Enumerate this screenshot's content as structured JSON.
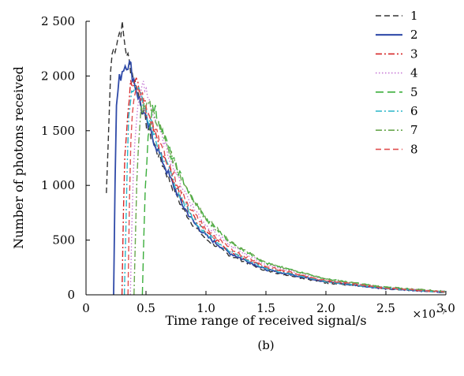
{
  "chart_data": {
    "type": "line",
    "xlabel": "Time range of received signal/s",
    "ylabel": "Number of photons received",
    "x_exponent": "×10⁻⁷",
    "panel_label": "(b)",
    "xlim": [
      0,
      3.0
    ],
    "ylim": [
      0,
      2500
    ],
    "x_ticks": [
      0,
      0.5,
      1.0,
      1.5,
      2.0,
      2.5,
      3.0
    ],
    "x_tick_labels": [
      "0",
      "0.5",
      "1.0",
      "1.5",
      "2.0",
      "2.5",
      "3.0"
    ],
    "y_ticks": [
      0,
      500,
      1000,
      1500,
      2000,
      2500
    ],
    "y_tick_labels": [
      "0",
      "500",
      "1 000",
      "1 500",
      "2 000",
      "2 500"
    ],
    "grid": false,
    "legend_position": "top-right",
    "series": [
      {
        "name": "1",
        "color": "#333333",
        "dash": "dash",
        "x": [
          0.17,
          0.21,
          0.25,
          0.28,
          0.3,
          0.33,
          0.37,
          0.42,
          0.5,
          0.6,
          0.7,
          0.8,
          0.9,
          1.0,
          1.2,
          1.5,
          2.0,
          2.5,
          3.0
        ],
        "y": [
          930,
          2180,
          2300,
          2400,
          2450,
          2250,
          2080,
          1900,
          1560,
          1290,
          1040,
          800,
          630,
          510,
          360,
          220,
          110,
          55,
          25
        ]
      },
      {
        "name": "2",
        "color": "#2f4aa8",
        "dash": "solid",
        "x": [
          0.23,
          0.25,
          0.28,
          0.31,
          0.34,
          0.37,
          0.4,
          0.45,
          0.5,
          0.6,
          0.7,
          0.8,
          0.9,
          1.0,
          1.2,
          1.5,
          2.0,
          2.5,
          3.0
        ],
        "y": [
          0,
          1700,
          1980,
          2080,
          2130,
          2090,
          1960,
          1760,
          1590,
          1320,
          1070,
          830,
          660,
          540,
          380,
          230,
          120,
          55,
          25
        ]
      },
      {
        "name": "3",
        "color": "#d62728",
        "dash": "dashdot",
        "x": [
          0.3,
          0.32,
          0.35,
          0.38,
          0.41,
          0.45,
          0.5,
          0.6,
          0.7,
          0.8,
          0.9,
          1.0,
          1.2,
          1.5,
          2.0,
          2.5,
          3.0
        ],
        "y": [
          0,
          1250,
          1720,
          1960,
          2000,
          1880,
          1700,
          1390,
          1120,
          880,
          700,
          570,
          400,
          245,
          125,
          60,
          25
        ]
      },
      {
        "name": "4",
        "color": "#c77ad6",
        "dash": "dot",
        "x": [
          0.37,
          0.39,
          0.42,
          0.45,
          0.48,
          0.52,
          0.6,
          0.7,
          0.8,
          0.9,
          1.0,
          1.2,
          1.5,
          2.0,
          2.5,
          3.0
        ],
        "y": [
          0,
          1050,
          1600,
          1850,
          1900,
          1800,
          1530,
          1250,
          990,
          790,
          640,
          450,
          275,
          140,
          65,
          28
        ]
      },
      {
        "name": "5",
        "color": "#3cae3c",
        "dash": "longdash",
        "x": [
          0.47,
          0.49,
          0.52,
          0.55,
          0.58,
          0.62,
          0.7,
          0.8,
          0.9,
          1.0,
          1.2,
          1.5,
          2.0,
          2.5,
          3.0
        ],
        "y": [
          0,
          900,
          1480,
          1700,
          1680,
          1550,
          1300,
          1060,
          850,
          690,
          480,
          290,
          145,
          70,
          30
        ]
      },
      {
        "name": "6",
        "color": "#29b6c8",
        "dash": "dashdot",
        "x": [
          0.32,
          0.35,
          0.38,
          0.42,
          0.46,
          0.5,
          0.6,
          0.7,
          0.8,
          0.9,
          1.0,
          1.2,
          1.5,
          2.0,
          2.5,
          3.0
        ],
        "y": [
          0,
          1500,
          1880,
          1930,
          1820,
          1680,
          1380,
          1110,
          870,
          690,
          560,
          395,
          240,
          120,
          58,
          25
        ]
      },
      {
        "name": "7",
        "color": "#6aa84f",
        "dash": "dashdot",
        "x": [
          0.4,
          0.43,
          0.46,
          0.5,
          0.54,
          0.58,
          0.65,
          0.7,
          0.8,
          0.9,
          1.0,
          1.2,
          1.5,
          2.0,
          2.5,
          3.0
        ],
        "y": [
          0,
          1300,
          1690,
          1750,
          1720,
          1620,
          1450,
          1300,
          1060,
          860,
          700,
          480,
          290,
          145,
          68,
          30
        ]
      },
      {
        "name": "8",
        "color": "#e05050",
        "dash": "dash",
        "x": [
          0.35,
          0.37,
          0.4,
          0.43,
          0.47,
          0.52,
          0.6,
          0.7,
          0.8,
          0.9,
          1.0,
          1.2,
          1.5,
          2.0,
          2.5,
          3.0
        ],
        "y": [
          0,
          1400,
          1780,
          1870,
          1800,
          1680,
          1430,
          1170,
          930,
          740,
          600,
          420,
          260,
          130,
          62,
          27
        ]
      }
    ]
  }
}
